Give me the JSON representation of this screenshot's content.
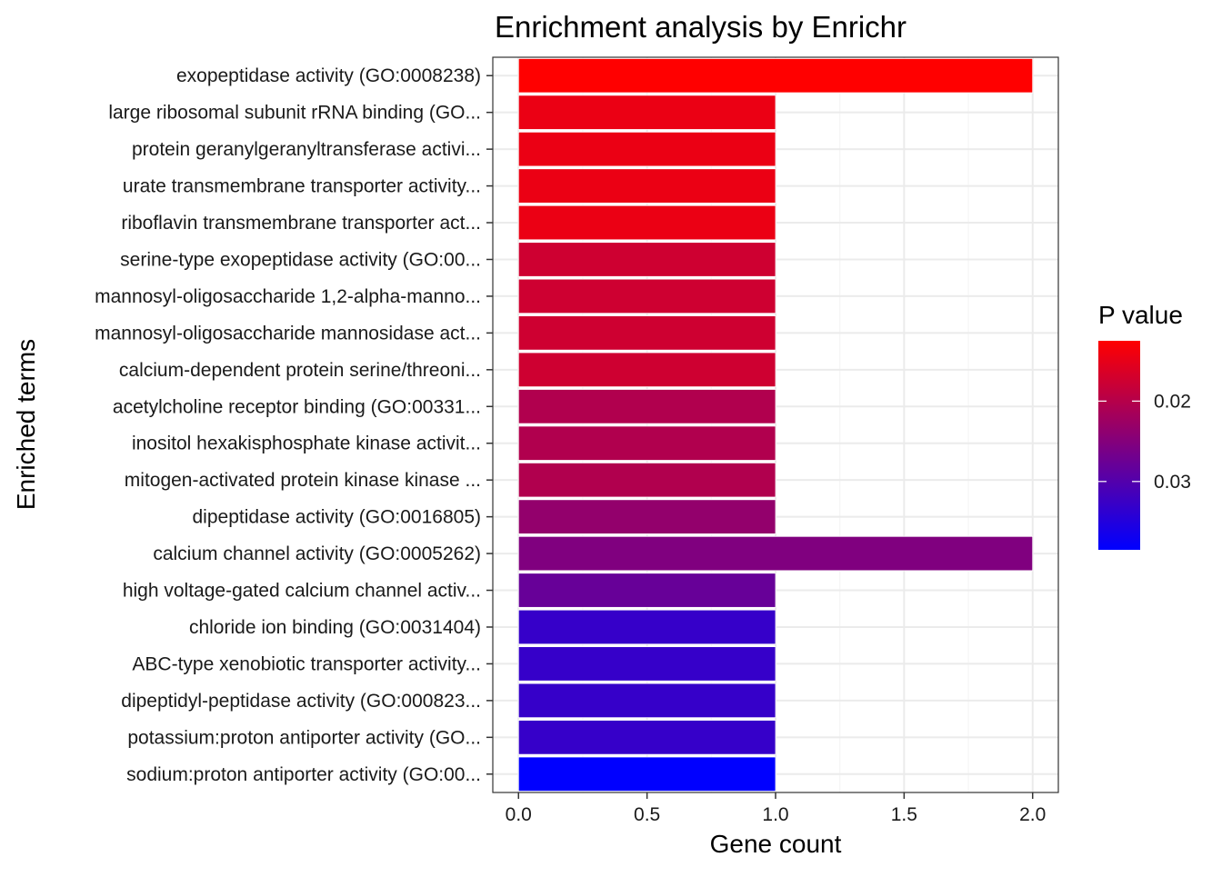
{
  "chart_data": {
    "type": "bar",
    "orientation": "horizontal",
    "title": "Enrichment analysis by Enrichr",
    "xlabel": "Gene count",
    "ylabel": "Enriched terms",
    "xlim": [
      -0.1,
      2.1
    ],
    "x_ticks": [
      0.0,
      0.5,
      1.0,
      1.5,
      2.0
    ],
    "x_tick_labels": [
      "0.0",
      "0.5",
      "1.0",
      "1.5",
      "2.0"
    ],
    "grid": true,
    "categories": [
      "exopeptidase activity (GO:0008238)",
      "large ribosomal subunit rRNA binding (GO...",
      "protein geranylgeranyltransferase activi...",
      "urate transmembrane transporter activity...",
      "riboflavin transmembrane transporter act...",
      "serine-type exopeptidase activity (GO:00...",
      "mannosyl-oligosaccharide 1,2-alpha-manno...",
      "mannosyl-oligosaccharide mannosidase act...",
      "calcium-dependent protein serine/threoni...",
      "acetylcholine receptor binding (GO:00331...",
      "inositol hexakisphosphate kinase activit...",
      "mitogen-activated protein kinase kinase ...",
      "dipeptidase activity (GO:0016805)",
      "calcium channel activity (GO:0005262)",
      "high voltage-gated calcium channel activ...",
      "chloride ion binding (GO:0031404)",
      "ABC-type xenobiotic transporter activity...",
      "dipeptidyl-peptidase activity (GO:000823...",
      "potassium:proton antiporter activity (GO...",
      "sodium:proton antiporter activity (GO:00..."
    ],
    "values": [
      2,
      1,
      1,
      1,
      1,
      1,
      1,
      1,
      1,
      1,
      1,
      1,
      1,
      2,
      1,
      1,
      1,
      1,
      1,
      1
    ],
    "p_values": [
      0.0125,
      0.0145,
      0.0145,
      0.0145,
      0.0145,
      0.0175,
      0.0175,
      0.0175,
      0.0175,
      0.0205,
      0.0205,
      0.0205,
      0.0235,
      0.0255,
      0.028,
      0.033,
      0.033,
      0.033,
      0.033,
      0.0385
    ],
    "legend": {
      "title": "P value",
      "position": "right",
      "range": [
        0.0125,
        0.0385
      ],
      "ticks": [
        0.02,
        0.03
      ],
      "tick_labels": [
        "0.02",
        "0.03"
      ],
      "color_low_p": "#ff0000",
      "color_high_p": "#0000ff"
    },
    "colors": {
      "background": "#ffffff",
      "grid_major": "#ebebeb",
      "grid_minor": "#f5f5f5",
      "panel_border": "#333333",
      "tick": "#333333",
      "bar_outline": "#ffffff"
    }
  }
}
